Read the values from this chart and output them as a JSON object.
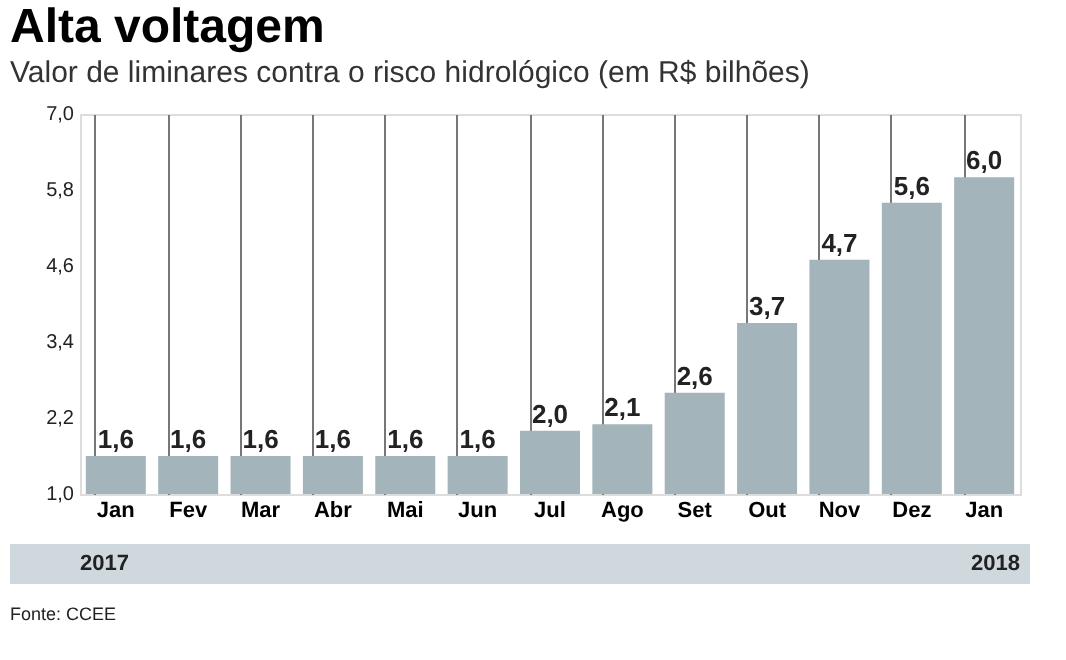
{
  "chart_data": {
    "type": "bar",
    "title": "Alta voltagem",
    "subtitle": "Valor de liminares contra o risco hidrológico (em R$ bilhões)",
    "categories": [
      "Jan",
      "Fev",
      "Mar",
      "Abr",
      "Mai",
      "Jun",
      "Jul",
      "Ago",
      "Set",
      "Out",
      "Nov",
      "Dez",
      "Jan"
    ],
    "values": [
      1.6,
      1.6,
      1.6,
      1.6,
      1.6,
      1.6,
      2.0,
      2.1,
      2.6,
      3.7,
      4.7,
      5.6,
      6.0
    ],
    "value_labels": [
      "1,6",
      "1,6",
      "1,6",
      "1,6",
      "1,6",
      "1,6",
      "2,0",
      "2,1",
      "2,6",
      "3,7",
      "4,7",
      "5,6",
      "6,0"
    ],
    "color": "#a3b4ba",
    "ylim": [
      1.0,
      7.0
    ],
    "yticks": [
      {
        "value": 1.0,
        "label": "1,0"
      },
      {
        "value": 2.2,
        "label": "2,2"
      },
      {
        "value": 3.4,
        "label": "3,4"
      },
      {
        "value": 4.6,
        "label": "4,6"
      },
      {
        "value": 5.8,
        "label": "5,8"
      },
      {
        "value": 7.0,
        "label": "7,0"
      }
    ],
    "grid": "x",
    "annotations": [
      "2017",
      "2018",
      "Fonte: CCEE"
    ]
  }
}
